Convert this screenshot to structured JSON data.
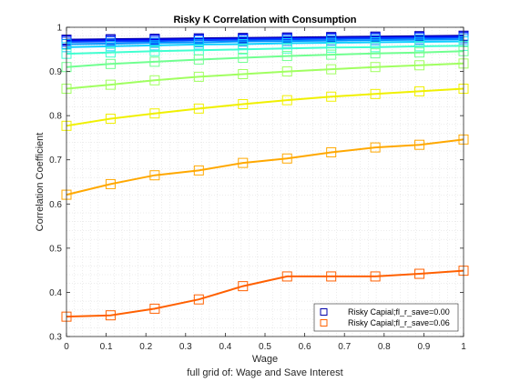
{
  "chart_data": {
    "type": "line",
    "title": "Risky K Correlation with Consumption",
    "xlabel": "Wage",
    "ylabel": "Correlation Coefficient",
    "subtitle": "full grid of: Wage and Save Interest",
    "xlim": [
      0,
      1
    ],
    "ylim": [
      0.3,
      1
    ],
    "xticks": [
      "0",
      "0.1",
      "0.2",
      "0.3",
      "0.4",
      "0.5",
      "0.6",
      "0.7",
      "0.8",
      "0.9",
      "1"
    ],
    "yticks": [
      "0.3",
      "0.4",
      "0.5",
      "0.6",
      "0.7",
      "0.8",
      "0.9",
      "1"
    ],
    "grid": "minor dotted",
    "legend_position": "bottom-right",
    "marker": "square",
    "x": [
      0,
      0.1111,
      0.2222,
      0.3333,
      0.4444,
      0.5556,
      0.6667,
      0.7778,
      0.8889,
      1
    ],
    "series": [
      {
        "color": "#0000a8",
        "values": [
          0.972,
          0.973,
          0.974,
          0.975,
          0.976,
          0.977,
          0.978,
          0.979,
          0.98,
          0.981
        ]
      },
      {
        "color": "#0000f0",
        "values": [
          0.97,
          0.971,
          0.972,
          0.973,
          0.974,
          0.975,
          0.976,
          0.977,
          0.978,
          0.979
        ]
      },
      {
        "color": "#0044ff",
        "values": [
          0.967,
          0.968,
          0.969,
          0.971,
          0.972,
          0.973,
          0.974,
          0.975,
          0.976,
          0.977
        ]
      },
      {
        "color": "#0090ff",
        "values": [
          0.962,
          0.963,
          0.965,
          0.966,
          0.968,
          0.969,
          0.97,
          0.971,
          0.972,
          0.973
        ]
      },
      {
        "color": "#10d0ff",
        "values": [
          0.955,
          0.957,
          0.959,
          0.961,
          0.962,
          0.964,
          0.965,
          0.966,
          0.967,
          0.968
        ]
      },
      {
        "color": "#40ffd0",
        "values": [
          0.94,
          0.943,
          0.946,
          0.948,
          0.95,
          0.952,
          0.954,
          0.955,
          0.957,
          0.958
        ]
      },
      {
        "color": "#70ff90",
        "values": [
          0.91,
          0.917,
          0.922,
          0.927,
          0.931,
          0.935,
          0.938,
          0.941,
          0.943,
          0.946
        ]
      },
      {
        "color": "#a0ff60",
        "values": [
          0.861,
          0.87,
          0.88,
          0.888,
          0.894,
          0.9,
          0.905,
          0.91,
          0.914,
          0.918
        ]
      },
      {
        "color": "#f0f000",
        "values": [
          0.777,
          0.793,
          0.805,
          0.816,
          0.826,
          0.835,
          0.843,
          0.849,
          0.855,
          0.861
        ]
      },
      {
        "color": "#ffa800",
        "values": [
          0.621,
          0.645,
          0.665,
          0.676,
          0.693,
          0.703,
          0.717,
          0.728,
          0.734,
          0.746
        ]
      },
      {
        "name": "Risky Capial;fl_r_save=0.06",
        "color": "#ff6000",
        "values": [
          0.345,
          0.348,
          0.363,
          0.384,
          0.414,
          0.436,
          0.436,
          0.436,
          0.442,
          0.449
        ]
      }
    ],
    "legend": [
      {
        "label": "Risky Capial;fl_r_save=0.00",
        "color": "#0000a8"
      },
      {
        "label": "Risky Capial;fl_r_save=0.06",
        "color": "#ff6000"
      }
    ]
  }
}
